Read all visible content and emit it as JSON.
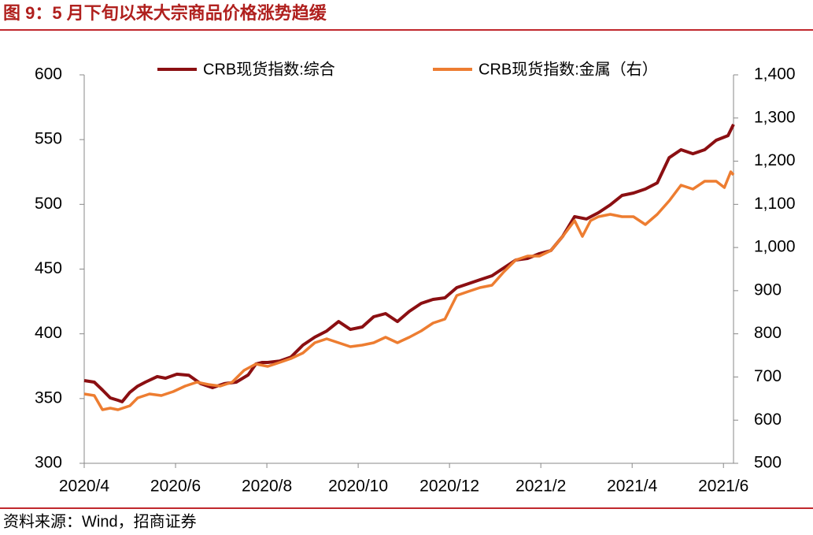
{
  "chart_data": {
    "type": "line",
    "title": "图 9：5 月下旬以来大宗商品价格涨势趋缓",
    "source": "资料来源：Wind，招商证券",
    "xlim": [
      0,
      14.22
    ],
    "xticks": [
      {
        "value": 0,
        "label": "2020/4"
      },
      {
        "value": 2,
        "label": "2020/6"
      },
      {
        "value": 4,
        "label": "2020/8"
      },
      {
        "value": 6,
        "label": "2020/10"
      },
      {
        "value": 8,
        "label": "2020/12"
      },
      {
        "value": 10,
        "label": "2021/2"
      },
      {
        "value": 12,
        "label": "2021/4"
      },
      {
        "value": 14,
        "label": "2021/6"
      }
    ],
    "ylim": [
      300,
      600
    ],
    "yticks": [
      300,
      350,
      400,
      450,
      500,
      550,
      600
    ],
    "y2lim": [
      500,
      1400
    ],
    "y2ticks": [
      500,
      600,
      700,
      800,
      900,
      {
        "value": 1000,
        "label": "1,000"
      },
      {
        "value": 1100,
        "label": "1,100"
      },
      {
        "value": 1200,
        "label": "1,200"
      },
      {
        "value": 1300,
        "label": "1,300"
      },
      {
        "value": 1400,
        "label": "1,400"
      }
    ],
    "series": [
      {
        "name": "CRB现货指数:综合",
        "color": "#8b0f12",
        "x": [
          0,
          0.22,
          0.4,
          0.57,
          0.74,
          0.83,
          1.0,
          1.17,
          1.34,
          1.6,
          1.78,
          2.03,
          2.29,
          2.55,
          2.81,
          3.07,
          3.33,
          3.59,
          3.76,
          3.9,
          4.02,
          4.28,
          4.53,
          4.79,
          5.05,
          5.31,
          5.57,
          5.83,
          6.09,
          6.34,
          6.6,
          6.86,
          7.12,
          7.38,
          7.64,
          7.9,
          8.16,
          8.41,
          8.67,
          8.93,
          9.19,
          9.45,
          9.71,
          9.97,
          10.22,
          10.48,
          10.74,
          11.0,
          11.26,
          11.52,
          11.78,
          12.03,
          12.29,
          12.55,
          12.81,
          13.07,
          13.33,
          13.59,
          13.84,
          14.1,
          14.22
        ],
        "values": [
          363.9,
          362.7,
          356.6,
          350.5,
          348.7,
          347.5,
          354.8,
          359.6,
          362.7,
          367,
          365.7,
          368.8,
          368,
          361.5,
          358.4,
          361.5,
          362.7,
          368.2,
          376.7,
          377.9,
          377.9,
          379,
          382.1,
          391.3,
          397.4,
          402.2,
          409.5,
          403.4,
          405.3,
          413.2,
          415.6,
          409.5,
          417.4,
          423.5,
          426.6,
          427.8,
          435.7,
          438.7,
          441.8,
          444.8,
          450.9,
          457,
          458.2,
          461.9,
          464.3,
          475.3,
          490.5,
          488.7,
          493.5,
          499.6,
          506.9,
          508.7,
          511.8,
          516.6,
          536,
          542.2,
          539.1,
          542.2,
          549.5,
          553.1,
          561.7
        ]
      },
      {
        "name": "CRB现货指数:金属（右）",
        "color": "#ed7d31",
        "axis": "y2",
        "x": [
          0,
          0.22,
          0.4,
          0.57,
          0.74,
          1.0,
          1.17,
          1.43,
          1.69,
          1.95,
          2.21,
          2.47,
          2.72,
          2.98,
          3.24,
          3.5,
          3.76,
          4.02,
          4.28,
          4.53,
          4.79,
          5.05,
          5.31,
          5.57,
          5.83,
          6.09,
          6.34,
          6.6,
          6.86,
          7.12,
          7.38,
          7.64,
          7.9,
          8.16,
          8.41,
          8.67,
          8.93,
          9.19,
          9.45,
          9.71,
          9.97,
          10.22,
          10.48,
          10.74,
          10.91,
          11.09,
          11.26,
          11.52,
          11.78,
          12.03,
          12.29,
          12.55,
          12.81,
          13.07,
          13.33,
          13.59,
          13.84,
          14.02,
          14.16,
          14.22
        ],
        "values": [
          660.7,
          657,
          624.1,
          627.8,
          624.1,
          633.3,
          651.5,
          660.7,
          657,
          666.1,
          678.9,
          688,
          682.6,
          678.9,
          688,
          715.4,
          730,
          724.5,
          733.7,
          742.8,
          755.6,
          779.3,
          788.4,
          779.3,
          770.2,
          773.8,
          779.3,
          792.1,
          779.3,
          792.1,
          806.7,
          825,
          834.1,
          888.9,
          898,
          907.1,
          912.6,
          943.6,
          971,
          980.1,
          980.1,
          992.9,
          1025.8,
          1062.3,
          1025.8,
          1062.3,
          1071.4,
          1076.9,
          1071.4,
          1071.4,
          1053.2,
          1076.9,
          1107.9,
          1144.4,
          1135.3,
          1153.6,
          1153.6,
          1139,
          1175.5,
          1168.2
        ]
      }
    ]
  }
}
